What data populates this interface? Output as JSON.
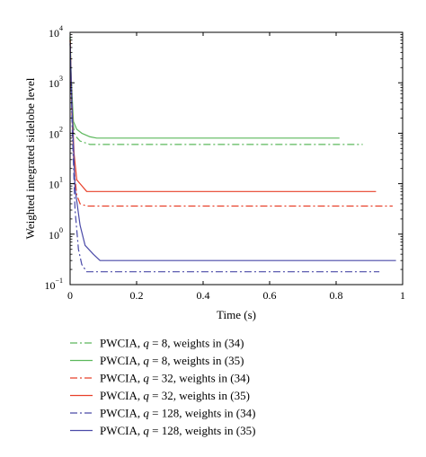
{
  "chart_data": {
    "type": "line",
    "xlabel": "Time (s)",
    "ylabel": "Weighted integrated sidelobe level",
    "xlim": [
      0,
      1
    ],
    "ylim": [
      0.1,
      10000
    ],
    "yscale": "log",
    "grid": false,
    "legend_placement": "below",
    "x_ticks": [
      0,
      0.2,
      0.4,
      0.6,
      0.8,
      1
    ],
    "x_tick_labels": [
      "0",
      "0.2",
      "0.4",
      "0.6",
      "0.8",
      "1"
    ],
    "y_ticks": [
      {
        "value": 0.1,
        "base": "10",
        "exp": "−1"
      },
      {
        "value": 1,
        "base": "10",
        "exp": "0"
      },
      {
        "value": 10,
        "base": "10",
        "exp": "1"
      },
      {
        "value": 100,
        "base": "10",
        "exp": "2"
      },
      {
        "value": 1000,
        "base": "10",
        "exp": "3"
      },
      {
        "value": 10000,
        "base": "10",
        "exp": "4"
      }
    ],
    "series": [
      {
        "prefix": "PWCIA, ",
        "q": "q",
        "suffix": " = 8, weights in (34)",
        "color": "#5cb85c",
        "dash": "8,3,2,3",
        "x": [
          0,
          0.003,
          0.008,
          0.015,
          0.03,
          0.06,
          0.88
        ],
        "y": [
          8000,
          900,
          160,
          90,
          70,
          60,
          60
        ]
      },
      {
        "prefix": "PWCIA, ",
        "q": "q",
        "suffix": " = 8, weights in (35)",
        "color": "#5cb85c",
        "dash": "",
        "x": [
          0,
          0.004,
          0.01,
          0.02,
          0.035,
          0.06,
          0.08,
          0.81
        ],
        "y": [
          8000,
          1000,
          170,
          120,
          100,
          85,
          80,
          80
        ]
      },
      {
        "prefix": "PWCIA, ",
        "q": "q",
        "suffix": " = 32, weights in (34)",
        "color": "#e8402a",
        "dash": "8,3,2,3",
        "x": [
          0,
          0.005,
          0.012,
          0.02,
          0.03,
          0.05,
          0.97
        ],
        "y": [
          7000,
          300,
          20,
          6,
          4,
          3.6,
          3.6
        ]
      },
      {
        "prefix": "PWCIA, ",
        "q": "q",
        "suffix": " = 32, weights in (35)",
        "color": "#e8402a",
        "dash": "",
        "x": [
          0,
          0.005,
          0.012,
          0.02,
          0.03,
          0.05,
          0.92
        ],
        "y": [
          7000,
          500,
          40,
          12,
          10,
          7,
          7
        ]
      },
      {
        "prefix": "PWCIA, ",
        "q": "q",
        "suffix": " = 128, weights in (34)",
        "color": "#4a4aa8",
        "dash": "8,3,2,3",
        "x": [
          0,
          0.006,
          0.015,
          0.025,
          0.035,
          0.05,
          0.93
        ],
        "y": [
          6000,
          150,
          3,
          0.5,
          0.25,
          0.18,
          0.18
        ]
      },
      {
        "prefix": "PWCIA, ",
        "q": "q",
        "suffix": " = 128, weights in (35)",
        "color": "#4a4aa8",
        "dash": "",
        "x": [
          0,
          0.006,
          0.015,
          0.03,
          0.045,
          0.07,
          0.09,
          0.98
        ],
        "y": [
          6000,
          300,
          8,
          1.5,
          0.6,
          0.4,
          0.3,
          0.3
        ]
      }
    ]
  }
}
